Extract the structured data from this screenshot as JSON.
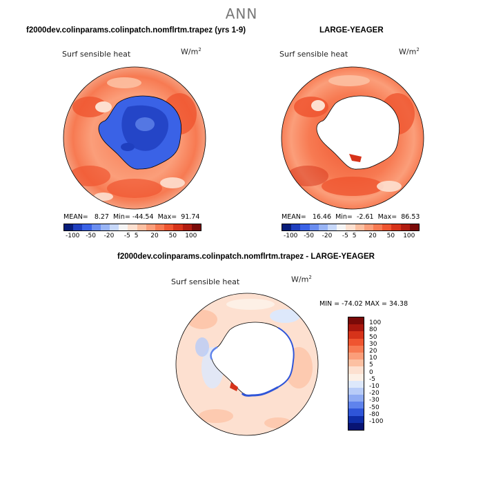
{
  "title": "ANN",
  "chart_data": [
    {
      "type": "contour-map",
      "projection": "south-polar-stereographic",
      "title": "f2000dev.colinparams.colinpatch.nomflrtm.trapez (yrs 1-9)",
      "variable": "Surf sensible heat",
      "units": "W/m",
      "units_exp": "2",
      "mean_label": "MEAN=",
      "mean": "8.27",
      "min_label": "Min=",
      "min": "-44.54",
      "max_label": "Max=",
      "max": "91.74",
      "antarctica": "negative (blue)",
      "ocean": "positive (orange/red)"
    },
    {
      "type": "contour-map",
      "projection": "south-polar-stereographic",
      "title": "LARGE-YEAGER",
      "variable": "Surf sensible heat",
      "units": "W/m",
      "units_exp": "2",
      "mean_label": "MEAN=",
      "mean": "16.46",
      "min_label": "Min=",
      "min": "-2.61",
      "max_label": "Max=",
      "max": "86.53",
      "antarctica": "missing (white)",
      "ocean": "positive (orange/red)"
    },
    {
      "type": "contour-map",
      "projection": "south-polar-stereographic",
      "title": "f2000dev.colinparams.colinpatch.nomflrtm.trapez - LARGE-YEAGER",
      "variable": "Surf sensible heat",
      "units": "W/m",
      "units_exp": "2",
      "minmax_text": "MIN = -74.02  MAX =  34.38",
      "min": -74.02,
      "max": 34.38
    }
  ],
  "colorbar_top": {
    "labels": [
      "-100",
      "-50",
      "-20",
      "-5",
      "5",
      "20",
      "50",
      "100"
    ],
    "colors": [
      "#081d7a",
      "#1f3fbf",
      "#3a62e6",
      "#6a8df0",
      "#98b4f5",
      "#c7d8fa",
      "#f5f5f5",
      "#fde0d0",
      "#fcc0a2",
      "#fb9e7a",
      "#f77a52",
      "#ef5530",
      "#d6331a",
      "#b01c10",
      "#7a0a08"
    ]
  },
  "colorbar_diff": {
    "labels": [
      "100",
      "80",
      "50",
      "30",
      "20",
      "10",
      "5",
      "0",
      "-5",
      "-10",
      "-20",
      "-30",
      "-50",
      "-80",
      "-100"
    ],
    "colors": [
      "#7a0a08",
      "#a8170e",
      "#d6331a",
      "#ef5530",
      "#f77a52",
      "#fb9e7a",
      "#fcc0a2",
      "#fde0d0",
      "#fdf0e6",
      "#dde8fb",
      "#b8ccf8",
      "#8fabf3",
      "#5f83ec",
      "#2f55d8",
      "#0f2ea8",
      "#081473"
    ]
  }
}
